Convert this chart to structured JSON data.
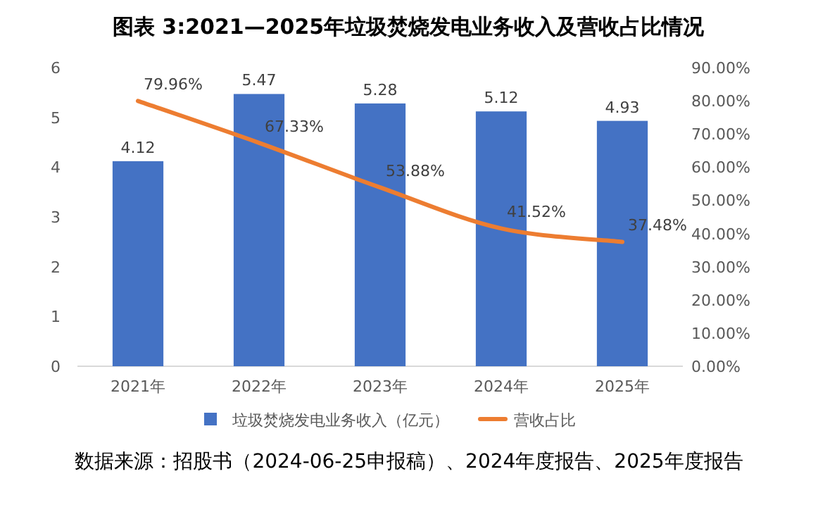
{
  "chart_data": {
    "type": "bar",
    "title": "图表 3:2021—2025年垃圾焚烧发电业务收入及营收占比情况",
    "categories": [
      "2021年",
      "2022年",
      "2023年",
      "2024年",
      "2025年"
    ],
    "series": [
      {
        "name": "垃圾焚烧发电业务收入（亿元）",
        "color": "#4472c4",
        "values": [
          4.12,
          5.47,
          5.28,
          5.12,
          4.93
        ],
        "value_labels": [
          "4.12",
          "5.47",
          "5.28",
          "5.12",
          "4.93"
        ]
      },
      {
        "name": "营收占比",
        "type": "line",
        "axis": "y2",
        "color": "#ed7d31",
        "values": [
          79.96,
          67.33,
          53.88,
          41.52,
          37.48
        ],
        "value_labels": [
          "79.96%",
          "67.33%",
          "53.88%",
          "41.52%",
          "37.48%"
        ]
      }
    ],
    "ylim": [
      0,
      6
    ],
    "yticks": [
      0,
      1,
      2,
      3,
      4,
      5,
      6
    ],
    "y2lim": [
      0,
      90
    ],
    "y2ticks": [
      {
        "value": 0,
        "label": "0.00%"
      },
      {
        "value": 10,
        "label": "10.00%"
      },
      {
        "value": 20,
        "label": "20.00%"
      },
      {
        "value": 30,
        "label": "30.00%"
      },
      {
        "value": 40,
        "label": "40.00%"
      },
      {
        "value": 50,
        "label": "50.00%"
      },
      {
        "value": 60,
        "label": "60.00%"
      },
      {
        "value": 70,
        "label": "70.00%"
      },
      {
        "value": 80,
        "label": "80.00%"
      },
      {
        "value": 90,
        "label": "90.00%"
      }
    ],
    "legend": "bottom",
    "marker": "none",
    "line_style": "solid",
    "annotations": [
      "数据来源：招股书（2024-06-25申报稿）、2024年度报告、2025年度报告"
    ]
  }
}
